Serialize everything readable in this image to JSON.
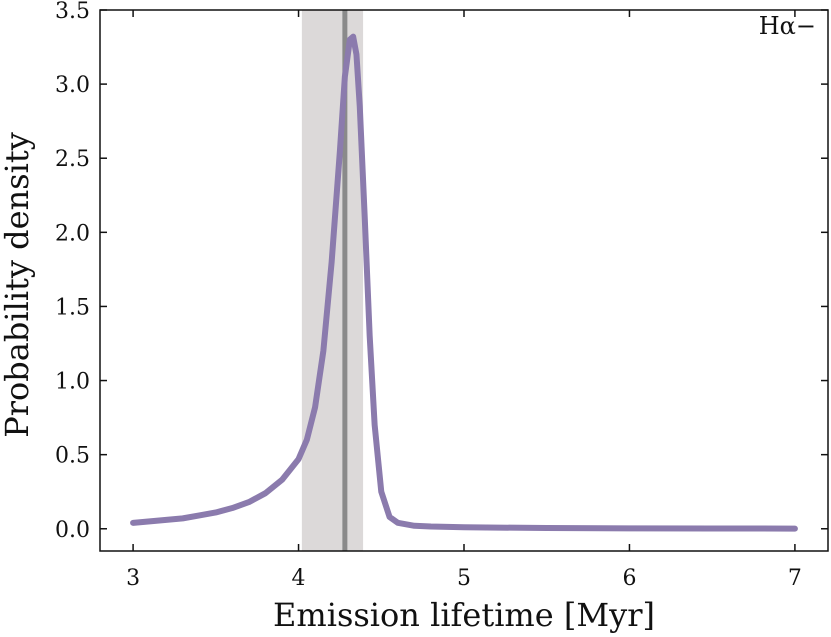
{
  "chart_data": {
    "type": "line",
    "title": "",
    "xlabel": "Emission lifetime  [Myr]",
    "ylabel": "Probability density",
    "xlim": [
      2.8,
      7.2
    ],
    "ylim": [
      -0.15,
      3.5
    ],
    "xticks": [
      3,
      4,
      5,
      6,
      7
    ],
    "xtick_labels": [
      "3",
      "4",
      "5",
      "6",
      "7"
    ],
    "yticks": [
      0.0,
      0.5,
      1.0,
      1.5,
      2.0,
      2.5,
      3.0,
      3.5
    ],
    "ytick_labels": [
      "0.0",
      "0.5",
      "1.0",
      "1.5",
      "2.0",
      "2.5",
      "3.0",
      "3.5"
    ],
    "grid": false,
    "annotation": "Hα−",
    "vertical_line": {
      "x": 4.28,
      "color": "#8a8a8a"
    },
    "shaded_band": {
      "x0": 4.02,
      "x1": 4.39,
      "color": "#dcd9d9"
    },
    "series": [
      {
        "color": "#8b7bad",
        "x": [
          3.0,
          3.1,
          3.2,
          3.3,
          3.4,
          3.5,
          3.6,
          3.7,
          3.8,
          3.9,
          4.0,
          4.05,
          4.1,
          4.15,
          4.2,
          4.25,
          4.28,
          4.31,
          4.33,
          4.35,
          4.37,
          4.4,
          4.43,
          4.46,
          4.5,
          4.55,
          4.6,
          4.7,
          4.8,
          5.0,
          5.5,
          6.0,
          6.5,
          7.0
        ],
        "y": [
          0.04,
          0.05,
          0.06,
          0.07,
          0.09,
          0.11,
          0.14,
          0.18,
          0.24,
          0.33,
          0.47,
          0.6,
          0.82,
          1.2,
          1.8,
          2.55,
          3.05,
          3.3,
          3.32,
          3.2,
          2.85,
          2.1,
          1.3,
          0.7,
          0.25,
          0.08,
          0.04,
          0.02,
          0.015,
          0.01,
          0.005,
          0.003,
          0.002,
          0.001
        ]
      }
    ]
  }
}
